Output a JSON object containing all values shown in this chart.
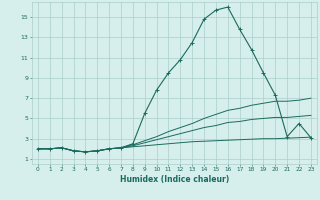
{
  "xlabel": "Humidex (Indice chaleur)",
  "bg_color": "#d6eeec",
  "grid_color": "#aacfcc",
  "line_color": "#1a6b5e",
  "x_ticks": [
    0,
    1,
    2,
    3,
    4,
    5,
    6,
    7,
    8,
    9,
    10,
    11,
    12,
    13,
    14,
    15,
    16,
    17,
    18,
    19,
    20,
    21,
    22,
    23
  ],
  "y_ticks": [
    1,
    3,
    5,
    7,
    9,
    11,
    13,
    15
  ],
  "xlim": [
    -0.5,
    23.5
  ],
  "ylim": [
    0.5,
    16.5
  ],
  "series1_x": [
    0,
    1,
    2,
    3,
    4,
    5,
    6,
    7,
    8,
    9,
    10,
    11,
    12,
    13,
    14,
    15,
    16,
    17,
    18,
    19,
    20,
    21,
    22,
    23
  ],
  "series1_y": [
    2.0,
    2.0,
    2.1,
    1.8,
    1.7,
    1.8,
    2.0,
    2.1,
    2.5,
    5.5,
    7.8,
    9.5,
    10.8,
    12.5,
    14.8,
    15.7,
    16.0,
    13.8,
    11.8,
    9.5,
    7.3,
    3.2,
    4.5,
    3.1
  ],
  "series2_x": [
    0,
    1,
    2,
    3,
    4,
    5,
    6,
    7,
    8,
    9,
    10,
    11,
    12,
    13,
    14,
    15,
    16,
    17,
    18,
    19,
    20,
    21,
    22,
    23
  ],
  "series2_y": [
    2.0,
    2.0,
    2.1,
    1.8,
    1.7,
    1.8,
    2.0,
    2.1,
    2.4,
    2.8,
    3.2,
    3.7,
    4.1,
    4.5,
    5.0,
    5.4,
    5.8,
    6.0,
    6.3,
    6.5,
    6.7,
    6.7,
    6.8,
    7.0
  ],
  "series3_x": [
    0,
    1,
    2,
    3,
    4,
    5,
    6,
    7,
    8,
    9,
    10,
    11,
    12,
    13,
    14,
    15,
    16,
    17,
    18,
    19,
    20,
    21,
    22,
    23
  ],
  "series3_y": [
    2.0,
    2.0,
    2.1,
    1.8,
    1.7,
    1.8,
    2.0,
    2.1,
    2.3,
    2.6,
    2.9,
    3.2,
    3.5,
    3.8,
    4.1,
    4.3,
    4.6,
    4.7,
    4.9,
    5.0,
    5.1,
    5.1,
    5.2,
    5.3
  ],
  "series4_x": [
    0,
    1,
    2,
    3,
    4,
    5,
    6,
    7,
    8,
    9,
    10,
    11,
    12,
    13,
    14,
    15,
    16,
    17,
    18,
    19,
    20,
    21,
    22,
    23
  ],
  "series4_y": [
    2.0,
    2.0,
    2.1,
    1.8,
    1.7,
    1.8,
    2.0,
    2.1,
    2.2,
    2.3,
    2.4,
    2.5,
    2.6,
    2.7,
    2.75,
    2.8,
    2.85,
    2.9,
    2.95,
    3.0,
    3.0,
    3.05,
    3.1,
    3.15
  ]
}
